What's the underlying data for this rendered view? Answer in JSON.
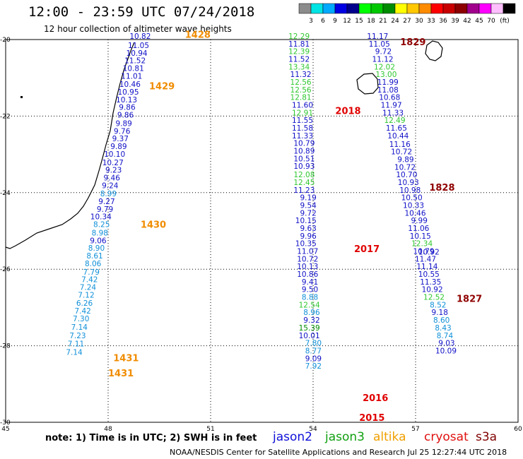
{
  "title": "12:00 - 23:59 UTC 07/24/2018",
  "subtitle": "12 hour collection of altimeter wave heights",
  "note": "note:  1) Time is in UTC;  2) SWH is in feet",
  "credit": "NOAA/NESDIS Center for Satellite Applications and Research     Jul 25 12:27:44 UTC 2018",
  "scale": {
    "unit": "(ft)",
    "colors": [
      "#8c8c8c",
      "#00e4e4",
      "#00aaff",
      "#0000e4",
      "#00008c",
      "#00ff00",
      "#00c800",
      "#008c00",
      "#ffff00",
      "#ffc800",
      "#ff8c00",
      "#ff0000",
      "#c80000",
      "#8c0000",
      "#a0008c",
      "#ff00ff",
      "#ffbfff",
      "#000000"
    ],
    "labels": [
      "3",
      "6",
      "9",
      "12",
      "15",
      "18",
      "21",
      "24",
      "27",
      "30",
      "33",
      "36",
      "39",
      "42",
      "45",
      "70"
    ]
  },
  "axes": {
    "lon_ticks": [
      "45",
      "48",
      "51",
      "54",
      "57",
      "60"
    ],
    "lat_ticks": [
      "-20",
      "-22",
      "-24",
      "-26",
      "-28",
      "-30"
    ]
  },
  "satellites": [
    {
      "name": "jason2",
      "color": "#1010d8"
    },
    {
      "name": "jason3",
      "color": "#10a010"
    },
    {
      "name": "altika",
      "color": "#f0a000"
    },
    {
      "name": "cryosat",
      "color": "#e01010"
    },
    {
      "name": "s3a",
      "color": "#800000"
    }
  ],
  "track_labels": [
    {
      "text": "1428",
      "color": "#f08c00",
      "lon": 50.25,
      "lat": -19.95
    },
    {
      "text": "1429",
      "color": "#f08c00",
      "lon": 49.2,
      "lat": -21.3
    },
    {
      "text": "1430",
      "color": "#f08c00",
      "lon": 48.95,
      "lat": -24.92
    },
    {
      "text": "1431",
      "color": "#f08c00",
      "lon": 48.15,
      "lat": -28.4
    },
    {
      "text": "1431",
      "color": "#f08c00",
      "lon": 48.0,
      "lat": -28.8
    },
    {
      "text": "2018",
      "color": "#e00000",
      "lon": 54.65,
      "lat": -21.95
    },
    {
      "text": "2017",
      "color": "#e00000",
      "lon": 55.2,
      "lat": -25.55
    },
    {
      "text": "2016",
      "color": "#e00000",
      "lon": 55.45,
      "lat": -29.45
    },
    {
      "text": "2015",
      "color": "#e00000",
      "lon": 55.35,
      "lat": -29.96
    },
    {
      "text": "1829",
      "color": "#900000",
      "lon": 56.55,
      "lat": -20.15
    },
    {
      "text": "1828",
      "color": "#900000",
      "lon": 57.4,
      "lat": -23.95
    },
    {
      "text": "1827",
      "color": "#900000",
      "lon": 58.2,
      "lat": -26.85
    }
  ],
  "tracks": [
    {
      "name": "altika-1428-1431",
      "points": [
        {
          "lon": 49.25,
          "lat": -19.98,
          "v": "10.82",
          "c": "#1010c8"
        },
        {
          "lon": 49.2,
          "lat": -20.22,
          "v": "11.05",
          "c": "#1010c8"
        },
        {
          "lon": 49.15,
          "lat": -20.42,
          "v": "10.94",
          "c": "#1010c8"
        },
        {
          "lon": 49.1,
          "lat": -20.62,
          "v": "11.52",
          "c": "#1010c8"
        },
        {
          "lon": 49.05,
          "lat": -20.82,
          "v": "10.81",
          "c": "#1010c8"
        },
        {
          "lon": 49.0,
          "lat": -21.02,
          "v": "11.01",
          "c": "#1010c8"
        },
        {
          "lon": 48.95,
          "lat": -21.24,
          "v": "10.46",
          "c": "#1010c8"
        },
        {
          "lon": 48.9,
          "lat": -21.44,
          "v": "10.95",
          "c": "#1010c8"
        },
        {
          "lon": 48.85,
          "lat": -21.64,
          "v": "10.13",
          "c": "#1010c8"
        },
        {
          "lon": 48.8,
          "lat": -21.84,
          "v": "9.86",
          "c": "#1010c8"
        },
        {
          "lon": 48.75,
          "lat": -22.04,
          "v": "9.86",
          "c": "#1010c8"
        },
        {
          "lon": 48.7,
          "lat": -22.26,
          "v": "9.89",
          "c": "#1010c8"
        },
        {
          "lon": 48.65,
          "lat": -22.46,
          "v": "9.76",
          "c": "#1010c8"
        },
        {
          "lon": 48.6,
          "lat": -22.66,
          "v": "9.37",
          "c": "#1010c8"
        },
        {
          "lon": 48.55,
          "lat": -22.86,
          "v": "9.89",
          "c": "#1010c8"
        },
        {
          "lon": 48.5,
          "lat": -23.06,
          "v": "10.10",
          "c": "#1010c8"
        },
        {
          "lon": 48.45,
          "lat": -23.28,
          "v": "10.27",
          "c": "#1010c8"
        },
        {
          "lon": 48.4,
          "lat": -23.48,
          "v": "9.23",
          "c": "#1010c8"
        },
        {
          "lon": 48.35,
          "lat": -23.68,
          "v": "9.46",
          "c": "#1010c8"
        },
        {
          "lon": 48.3,
          "lat": -23.88,
          "v": "9.24",
          "c": "#1010c8"
        },
        {
          "lon": 48.25,
          "lat": -24.1,
          "v": "8.99",
          "c": "#1090d8"
        },
        {
          "lon": 48.2,
          "lat": -24.3,
          "v": "9.27",
          "c": "#1010c8"
        },
        {
          "lon": 48.15,
          "lat": -24.5,
          "v": "9.79",
          "c": "#1010c8"
        },
        {
          "lon": 48.1,
          "lat": -24.7,
          "v": "10.34",
          "c": "#1010c8"
        },
        {
          "lon": 48.05,
          "lat": -24.9,
          "v": "8.25",
          "c": "#1090d8"
        },
        {
          "lon": 48.0,
          "lat": -25.12,
          "v": "8.98",
          "c": "#1090d8"
        },
        {
          "lon": 47.95,
          "lat": -25.32,
          "v": "9.06",
          "c": "#1010c8"
        },
        {
          "lon": 47.9,
          "lat": -25.52,
          "v": "8.90",
          "c": "#1090d8"
        },
        {
          "lon": 47.85,
          "lat": -25.72,
          "v": "8.61",
          "c": "#1090d8"
        },
        {
          "lon": 47.8,
          "lat": -25.92,
          "v": "8.06",
          "c": "#1090d8"
        },
        {
          "lon": 47.75,
          "lat": -26.14,
          "v": "7.79",
          "c": "#1090d8"
        },
        {
          "lon": 47.7,
          "lat": -26.34,
          "v": "7.42",
          "c": "#1090d8"
        },
        {
          "lon": 47.65,
          "lat": -26.54,
          "v": "7.24",
          "c": "#1090d8"
        },
        {
          "lon": 47.6,
          "lat": -26.74,
          "v": "7.12",
          "c": "#1090d8"
        },
        {
          "lon": 47.55,
          "lat": -26.96,
          "v": "6.26",
          "c": "#1090d8"
        },
        {
          "lon": 47.5,
          "lat": -27.16,
          "v": "7.42",
          "c": "#1090d8"
        },
        {
          "lon": 47.45,
          "lat": -27.36,
          "v": "7.30",
          "c": "#1090d8"
        },
        {
          "lon": 47.4,
          "lat": -27.58,
          "v": "7.14",
          "c": "#1090d8"
        },
        {
          "lon": 47.35,
          "lat": -27.8,
          "v": "7.23",
          "c": "#1090d8"
        },
        {
          "lon": 47.3,
          "lat": -28.02,
          "v": "7.11",
          "c": "#1090d8"
        },
        {
          "lon": 47.25,
          "lat": -28.24,
          "v": "7.14",
          "c": "#1090d8"
        }
      ]
    },
    {
      "name": "cryosat-2015-2018",
      "points": [
        {
          "lon": 53.9,
          "lat": -19.98,
          "v": "12.29",
          "c": "#30c830"
        },
        {
          "lon": 53.9,
          "lat": -20.18,
          "v": "11.81",
          "c": "#1010c8"
        },
        {
          "lon": 53.9,
          "lat": -20.38,
          "v": "12.39",
          "c": "#30c830"
        },
        {
          "lon": 53.9,
          "lat": -20.58,
          "v": "11.52",
          "c": "#1010c8"
        },
        {
          "lon": 53.9,
          "lat": -20.78,
          "v": "13.34",
          "c": "#30c830"
        },
        {
          "lon": 53.95,
          "lat": -20.98,
          "v": "11.32",
          "c": "#1010c8"
        },
        {
          "lon": 53.95,
          "lat": -21.18,
          "v": "12.56",
          "c": "#30c830"
        },
        {
          "lon": 53.95,
          "lat": -21.38,
          "v": "12.56",
          "c": "#30c830"
        },
        {
          "lon": 53.95,
          "lat": -21.58,
          "v": "12.81",
          "c": "#30c830"
        },
        {
          "lon": 54.0,
          "lat": -21.78,
          "v": "11.60",
          "c": "#1010c8"
        },
        {
          "lon": 54.0,
          "lat": -21.98,
          "v": "12.91",
          "c": "#30c830"
        },
        {
          "lon": 54.0,
          "lat": -22.18,
          "v": "11.55",
          "c": "#1010c8"
        },
        {
          "lon": 54.0,
          "lat": -22.38,
          "v": "11.58",
          "c": "#1010c8"
        },
        {
          "lon": 54.0,
          "lat": -22.58,
          "v": "11.33",
          "c": "#1010c8"
        },
        {
          "lon": 54.05,
          "lat": -22.78,
          "v": "10.79",
          "c": "#1010c8"
        },
        {
          "lon": 54.05,
          "lat": -22.98,
          "v": "10.89",
          "c": "#1010c8"
        },
        {
          "lon": 54.05,
          "lat": -23.18,
          "v": "10.51",
          "c": "#1010c8"
        },
        {
          "lon": 54.05,
          "lat": -23.38,
          "v": "10.93",
          "c": "#1010c8"
        },
        {
          "lon": 54.05,
          "lat": -23.6,
          "v": "12.08",
          "c": "#30c830"
        },
        {
          "lon": 54.05,
          "lat": -23.8,
          "v": "12.45",
          "c": "#30c830"
        },
        {
          "lon": 54.05,
          "lat": -24.0,
          "v": "11.23",
          "c": "#1010c8"
        },
        {
          "lon": 54.1,
          "lat": -24.2,
          "v": "9.19",
          "c": "#1010c8"
        },
        {
          "lon": 54.1,
          "lat": -24.4,
          "v": "9.54",
          "c": "#1010c8"
        },
        {
          "lon": 54.1,
          "lat": -24.6,
          "v": "9.72",
          "c": "#1010c8"
        },
        {
          "lon": 54.1,
          "lat": -24.8,
          "v": "10.15",
          "c": "#1010c8"
        },
        {
          "lon": 54.1,
          "lat": -25.0,
          "v": "9.63",
          "c": "#1010c8"
        },
        {
          "lon": 54.1,
          "lat": -25.2,
          "v": "9.96",
          "c": "#1010c8"
        },
        {
          "lon": 54.1,
          "lat": -25.4,
          "v": "10.35",
          "c": "#1010c8"
        },
        {
          "lon": 54.15,
          "lat": -25.6,
          "v": "11.07",
          "c": "#1010c8"
        },
        {
          "lon": 54.15,
          "lat": -25.8,
          "v": "10.72",
          "c": "#1010c8"
        },
        {
          "lon": 54.15,
          "lat": -26.0,
          "v": "10.13",
          "c": "#1010c8"
        },
        {
          "lon": 54.15,
          "lat": -26.2,
          "v": "10.86",
          "c": "#1010c8"
        },
        {
          "lon": 54.15,
          "lat": -26.4,
          "v": "9.41",
          "c": "#1010c8"
        },
        {
          "lon": 54.15,
          "lat": -26.6,
          "v": "9.50",
          "c": "#1010c8"
        },
        {
          "lon": 54.15,
          "lat": -26.8,
          "v": "8.88",
          "c": "#1090d8"
        },
        {
          "lon": 54.2,
          "lat": -27.0,
          "v": "12.54",
          "c": "#30c830"
        },
        {
          "lon": 54.2,
          "lat": -27.2,
          "v": "8.96",
          "c": "#1090d8"
        },
        {
          "lon": 54.2,
          "lat": -27.4,
          "v": "9.32",
          "c": "#1010c8"
        },
        {
          "lon": 54.2,
          "lat": -27.6,
          "v": "15.39",
          "c": "#008c00"
        },
        {
          "lon": 54.2,
          "lat": -27.8,
          "v": "10.01",
          "c": "#1010c8"
        },
        {
          "lon": 54.25,
          "lat": -28.0,
          "v": "7.80",
          "c": "#1090d8"
        },
        {
          "lon": 54.25,
          "lat": -28.2,
          "v": "8.77",
          "c": "#1090d8"
        },
        {
          "lon": 54.25,
          "lat": -28.4,
          "v": "9.09",
          "c": "#1010c8"
        },
        {
          "lon": 54.25,
          "lat": -28.6,
          "v": "7.92",
          "c": "#1090d8"
        }
      ]
    },
    {
      "name": "s3a-1827-1829",
      "points": [
        {
          "lon": 56.2,
          "lat": -19.98,
          "v": "11.17",
          "c": "#1010c8"
        },
        {
          "lon": 56.25,
          "lat": -20.18,
          "v": "11.05",
          "c": "#1010c8"
        },
        {
          "lon": 56.3,
          "lat": -20.38,
          "v": "9.72",
          "c": "#1010c8"
        },
        {
          "lon": 56.35,
          "lat": -20.58,
          "v": "11.12",
          "c": "#1010c8"
        },
        {
          "lon": 56.4,
          "lat": -20.78,
          "v": "12.02",
          "c": "#30c830"
        },
        {
          "lon": 56.45,
          "lat": -20.98,
          "v": "13.00",
          "c": "#30c830"
        },
        {
          "lon": 56.5,
          "lat": -21.18,
          "v": "11.99",
          "c": "#1010c8"
        },
        {
          "lon": 56.5,
          "lat": -21.38,
          "v": "11.08",
          "c": "#1010c8"
        },
        {
          "lon": 56.55,
          "lat": -21.58,
          "v": "10.68",
          "c": "#1010c8"
        },
        {
          "lon": 56.6,
          "lat": -21.78,
          "v": "11.97",
          "c": "#1010c8"
        },
        {
          "lon": 56.65,
          "lat": -21.98,
          "v": "11.33",
          "c": "#1010c8"
        },
        {
          "lon": 56.7,
          "lat": -22.18,
          "v": "12.49",
          "c": "#30c830"
        },
        {
          "lon": 56.75,
          "lat": -22.38,
          "v": "11.65",
          "c": "#1010c8"
        },
        {
          "lon": 56.8,
          "lat": -22.58,
          "v": "10.44",
          "c": "#1010c8"
        },
        {
          "lon": 56.85,
          "lat": -22.8,
          "v": "11.16",
          "c": "#1010c8"
        },
        {
          "lon": 56.9,
          "lat": -23.0,
          "v": "10.72",
          "c": "#1010c8"
        },
        {
          "lon": 56.95,
          "lat": -23.2,
          "v": "9.89",
          "c": "#1010c8"
        },
        {
          "lon": 57.0,
          "lat": -23.4,
          "v": "10.72",
          "c": "#1010c8"
        },
        {
          "lon": 57.05,
          "lat": -23.6,
          "v": "10.70",
          "c": "#1010c8"
        },
        {
          "lon": 57.1,
          "lat": -23.8,
          "v": "10.93",
          "c": "#1010c8"
        },
        {
          "lon": 57.15,
          "lat": -24.0,
          "v": "10.98",
          "c": "#1010c8"
        },
        {
          "lon": 57.2,
          "lat": -24.2,
          "v": "10.50",
          "c": "#1010c8"
        },
        {
          "lon": 57.25,
          "lat": -24.4,
          "v": "10.33",
          "c": "#1010c8"
        },
        {
          "lon": 57.3,
          "lat": -24.6,
          "v": "10.46",
          "c": "#1010c8"
        },
        {
          "lon": 57.35,
          "lat": -24.8,
          "v": "9.99",
          "c": "#1010c8"
        },
        {
          "lon": 57.4,
          "lat": -25.0,
          "v": "11.06",
          "c": "#1010c8"
        },
        {
          "lon": 57.45,
          "lat": -25.2,
          "v": "10.15",
          "c": "#1010c8"
        },
        {
          "lon": 57.5,
          "lat": -25.4,
          "v": "12.34",
          "c": "#30c830"
        },
        {
          "lon": 57.55,
          "lat": -25.6,
          "v": "10.79",
          "c": "#1010c8"
        },
        {
          "lon": 57.6,
          "lat": -25.8,
          "v": "11.47",
          "c": "#1010c8"
        },
        {
          "lon": 57.65,
          "lat": -26.0,
          "v": "11.14",
          "c": "#1010c8"
        },
        {
          "lon": 57.7,
          "lat": -26.2,
          "v": "10.55",
          "c": "#1010c8"
        },
        {
          "lon": 57.75,
          "lat": -26.4,
          "v": "11.35",
          "c": "#1010c8"
        },
        {
          "lon": 57.8,
          "lat": -26.6,
          "v": "10.92",
          "c": "#1010c8"
        },
        {
          "lon": 57.85,
          "lat": -26.8,
          "v": "12.52",
          "c": "#30c830"
        },
        {
          "lon": 57.9,
          "lat": -27.0,
          "v": "8.52",
          "c": "#1090d8"
        },
        {
          "lon": 57.95,
          "lat": -27.2,
          "v": "9.18",
          "c": "#1010c8"
        },
        {
          "lon": 58.0,
          "lat": -27.4,
          "v": "8.60",
          "c": "#1090d8"
        },
        {
          "lon": 58.05,
          "lat": -27.6,
          "v": "8.43",
          "c": "#1090d8"
        },
        {
          "lon": 58.1,
          "lat": -27.8,
          "v": "8.74",
          "c": "#1090d8"
        },
        {
          "lon": 58.15,
          "lat": -28.0,
          "v": "9.03",
          "c": "#1010c8"
        },
        {
          "lon": 58.2,
          "lat": -28.2,
          "v": "10.09",
          "c": "#1010c8"
        }
      ]
    }
  ],
  "extra_points": [
    {
      "lon": 57.7,
      "lat": -25.62,
      "v": "10.92",
      "c": "#1010c8"
    }
  ],
  "map": {
    "lon_min": 45,
    "lon_max": 60,
    "lat_max": -20,
    "lat_min": -30,
    "coast_color": "#000000"
  }
}
